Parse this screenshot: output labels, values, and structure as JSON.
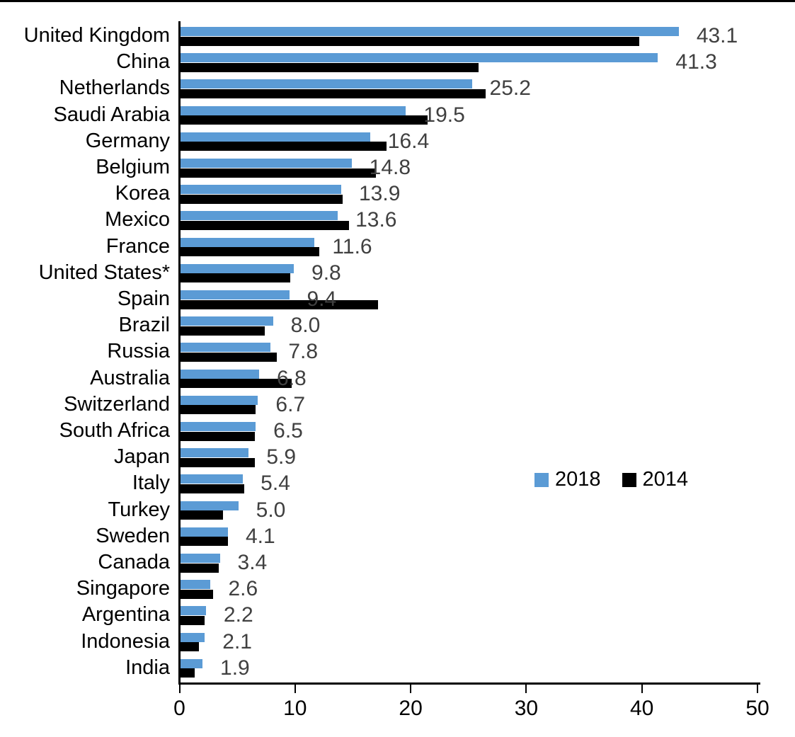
{
  "chart_data": {
    "type": "bar",
    "orientation": "horizontal",
    "title": "",
    "xlabel": "",
    "ylabel": "",
    "grid": false,
    "legend_position": "middle-right",
    "xlim": [
      0,
      50
    ],
    "x_ticks": [
      "0",
      "10",
      "20",
      "30",
      "40",
      "50"
    ],
    "categories": [
      "United Kingdom",
      "China",
      "Netherlands",
      "Saudi Arabia",
      "Germany",
      "Belgium",
      "Korea",
      "Mexico",
      "France",
      "United States*",
      "Spain",
      "Brazil",
      "Russia",
      "Australia",
      "Switzerland",
      "South Africa",
      "Japan",
      "Italy",
      "Turkey",
      "Sweden",
      "Canada",
      "Singapore",
      "Argentina",
      "Indonesia",
      "India"
    ],
    "series": [
      {
        "name": "2018",
        "color": "#5B9BD5",
        "values": [
          43.1,
          41.3,
          25.2,
          19.5,
          16.4,
          14.8,
          13.9,
          13.6,
          11.6,
          9.8,
          9.4,
          8.0,
          7.8,
          6.8,
          6.7,
          6.5,
          5.9,
          5.4,
          5.0,
          4.1,
          3.4,
          2.6,
          2.2,
          2.1,
          1.9
        ]
      },
      {
        "name": "2014",
        "color": "#000000",
        "values": [
          39.7,
          25.8,
          26.4,
          21.4,
          17.8,
          16.9,
          14.0,
          14.6,
          12.0,
          9.5,
          17.1,
          7.3,
          8.3,
          9.6,
          6.5,
          6.4,
          6.4,
          5.5,
          3.7,
          4.1,
          3.3,
          2.8,
          2.1,
          1.6,
          1.2
        ]
      }
    ],
    "value_labels": [
      "43.1",
      "41.3",
      "25.2",
      "19.5",
      "16.4",
      "14.8",
      "13.9",
      "13.6",
      "11.6",
      "9.8",
      "9.4",
      "8.0",
      "7.8",
      "6.8",
      "6.7",
      "6.5",
      "5.9",
      "5.4",
      "5.0",
      "4.1",
      "3.4",
      "2.6",
      "2.2",
      "2.1",
      "1.9"
    ],
    "value_label_color": "#404040"
  }
}
